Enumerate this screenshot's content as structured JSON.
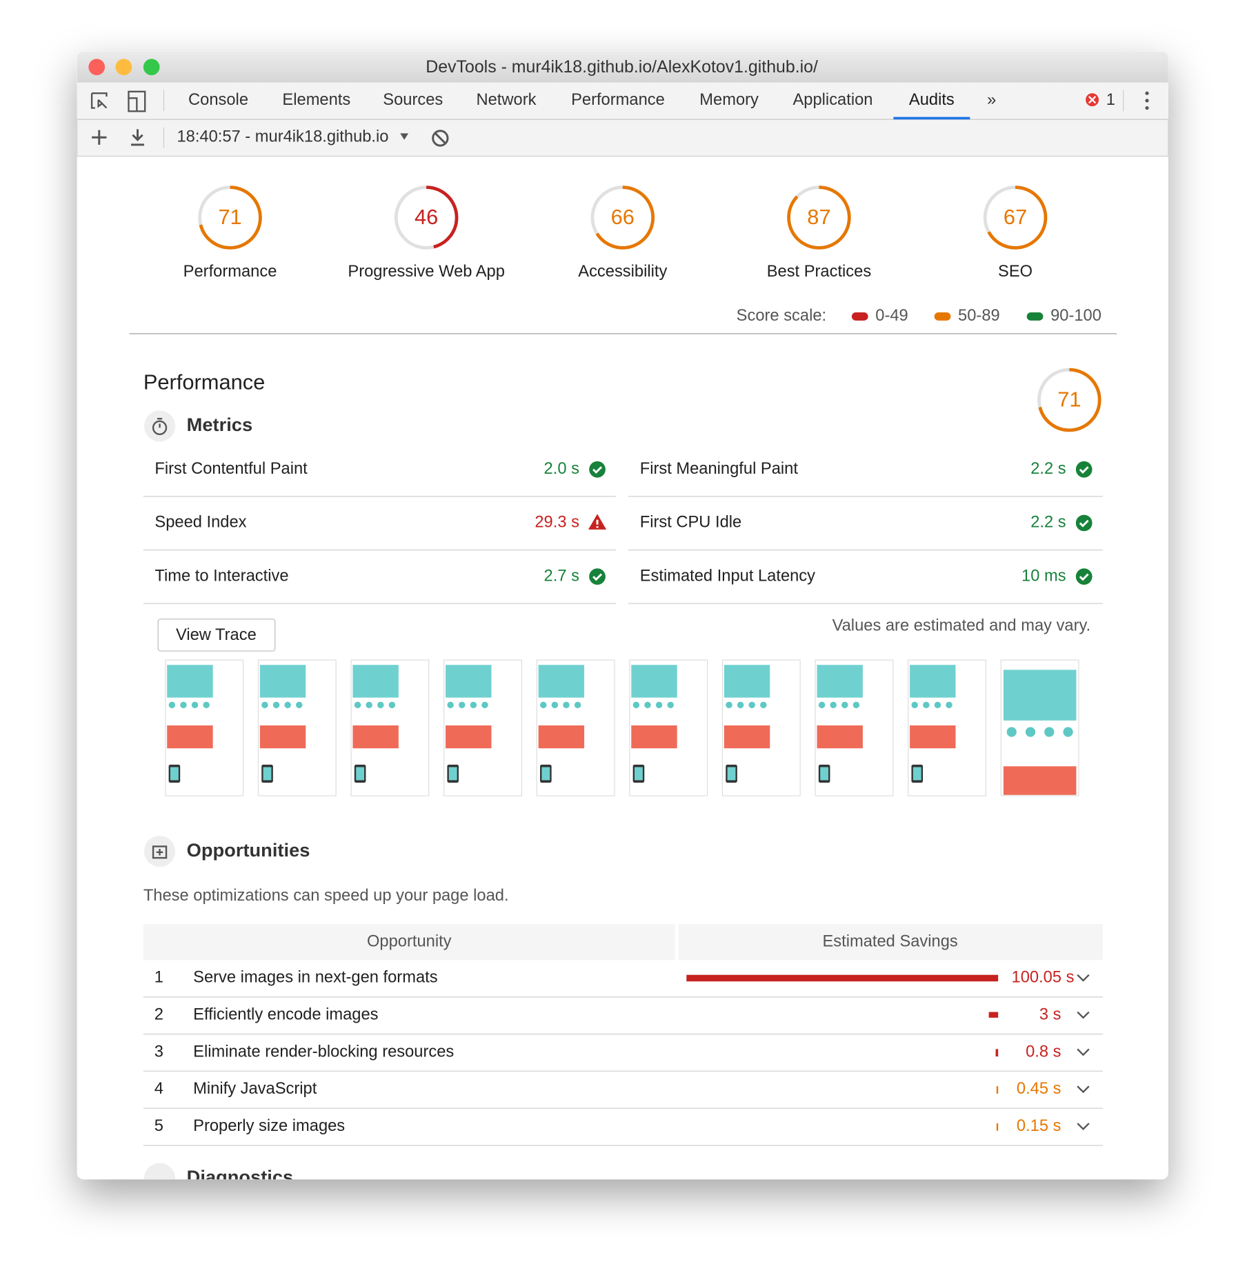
{
  "window": {
    "title": "DevTools - mur4ik18.github.io/AlexKotov1.github.io/"
  },
  "tabs": {
    "items": [
      "Console",
      "Elements",
      "Sources",
      "Network",
      "Performance",
      "Memory",
      "Application",
      "Audits"
    ],
    "active": 7,
    "more": "»",
    "errors": "1"
  },
  "toolbar": {
    "report": "18:40:57 - mur4ik18.github.io"
  },
  "gauges": [
    {
      "score": 71,
      "label": "Performance",
      "color": "#e67700"
    },
    {
      "score": 46,
      "label": "Progressive Web App",
      "color": "#c7221f"
    },
    {
      "score": 66,
      "label": "Accessibility",
      "color": "#e67700"
    },
    {
      "score": 87,
      "label": "Best Practices",
      "color": "#e67700"
    },
    {
      "score": 67,
      "label": "SEO",
      "color": "#e67700"
    }
  ],
  "score_scale": {
    "title": "Score scale:",
    "items": [
      {
        "label": "0-49",
        "color": "#c7221f"
      },
      {
        "label": "50-89",
        "color": "#e67700"
      },
      {
        "label": "90-100",
        "color": "#178239"
      }
    ]
  },
  "performance": {
    "title": "Performance",
    "score": 71,
    "color": "#e67700",
    "metrics_title": "Metrics",
    "metrics": [
      {
        "label": "First Contentful Paint",
        "value": "2.0 s",
        "status": "pass"
      },
      {
        "label": "First Meaningful Paint",
        "value": "2.2 s",
        "status": "pass"
      },
      {
        "label": "Speed Index",
        "value": "29.3 s",
        "status": "fail"
      },
      {
        "label": "First CPU Idle",
        "value": "2.2 s",
        "status": "pass"
      },
      {
        "label": "Time to Interactive",
        "value": "2.7 s",
        "status": "pass"
      },
      {
        "label": "Estimated Input Latency",
        "value": "10 ms",
        "status": "pass"
      }
    ],
    "view_trace": "View Trace",
    "note": "Values are estimated and may vary."
  },
  "opportunities": {
    "title": "Opportunities",
    "description": "These optimizations can speed up your page load.",
    "header": [
      "Opportunity",
      "Estimated Savings"
    ],
    "rows": [
      {
        "index": "1",
        "name": "Serve images in next-gen formats",
        "savings": {
          "value": 100.05,
          "label": "100.05 s"
        },
        "color": "#c7221f"
      },
      {
        "index": "2",
        "name": "Efficiently encode images",
        "savings": {
          "value": 3,
          "label": "3 s"
        },
        "color": "#c7221f"
      },
      {
        "index": "3",
        "name": "Eliminate render-blocking resources",
        "savings": {
          "value": 0.8,
          "label": "0.8 s"
        },
        "color": "#c7221f"
      },
      {
        "index": "4",
        "name": "Minify JavaScript",
        "savings": {
          "value": 0.45,
          "label": "0.45 s"
        },
        "color": "#e67700"
      },
      {
        "index": "5",
        "name": "Properly size images",
        "savings": {
          "value": 0.15,
          "label": "0.15 s"
        },
        "color": "#e67700"
      }
    ]
  },
  "diagnostics": {
    "title": "Diagnostics"
  }
}
